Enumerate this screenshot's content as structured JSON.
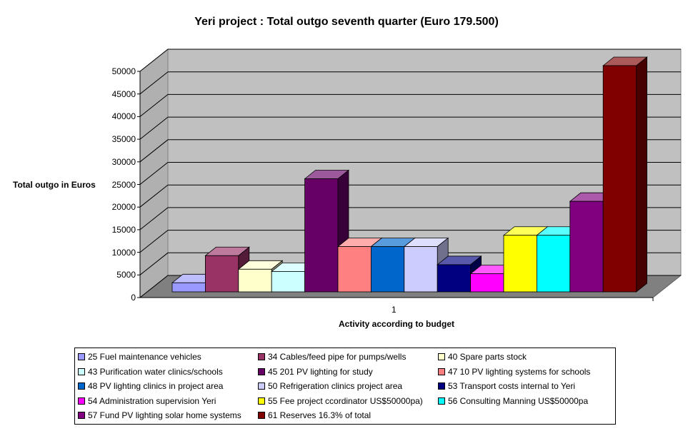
{
  "chart_data": {
    "type": "bar",
    "title": "Yeri project : Total outgo seventh quarter (Euro 179.500)",
    "xlabel": "Activity according to budget",
    "ylabel": "Total outgo in Euros",
    "categories": [
      "1"
    ],
    "ylim": [
      0,
      50000
    ],
    "yticks": [
      0,
      5000,
      10000,
      15000,
      20000,
      25000,
      30000,
      35000,
      40000,
      45000,
      50000
    ],
    "grid": true,
    "legend_position": "bottom",
    "series": [
      {
        "name": "25 Fuel maintenance vehicles",
        "values": [
          2000
        ],
        "color": "#9999FF"
      },
      {
        "name": "34 Cables/feed pipe for pumps/wells",
        "values": [
          8000
        ],
        "color": "#993366"
      },
      {
        "name": "40 Spare parts stock",
        "values": [
          5000
        ],
        "color": "#FFFFCC"
      },
      {
        "name": "43 Purification water clinics/schools",
        "values": [
          4500
        ],
        "color": "#CCFFFF"
      },
      {
        "name": "45 201 PV lighting for study",
        "values": [
          25000
        ],
        "color": "#660066"
      },
      {
        "name": "47 10 PV lighting systems for schools",
        "values": [
          10000
        ],
        "color": "#FF8080"
      },
      {
        "name": "48 PV lighting clinics in project area",
        "values": [
          10000
        ],
        "color": "#0066CC"
      },
      {
        "name": "50 Refrigeration clinics project area",
        "values": [
          10000
        ],
        "color": "#CCCCFF"
      },
      {
        "name": "53 Transport costs internal to Yeri",
        "values": [
          6000
        ],
        "color": "#000080"
      },
      {
        "name": "54 Administration supervision Yeri",
        "values": [
          4000
        ],
        "color": "#FF00FF"
      },
      {
        "name": "55 Fee project ccordinator US$50000pa)",
        "values": [
          12500
        ],
        "color": "#FFFF00"
      },
      {
        "name": "56 Consulting Manning US$50000pa",
        "values": [
          12500
        ],
        "color": "#00FFFF"
      },
      {
        "name": "57 Fund PV lighting solar home systems",
        "values": [
          20000
        ],
        "color": "#800080"
      },
      {
        "name": "61 Reserves 16.3% of total",
        "values": [
          50000
        ],
        "color": "#800000"
      }
    ]
  }
}
